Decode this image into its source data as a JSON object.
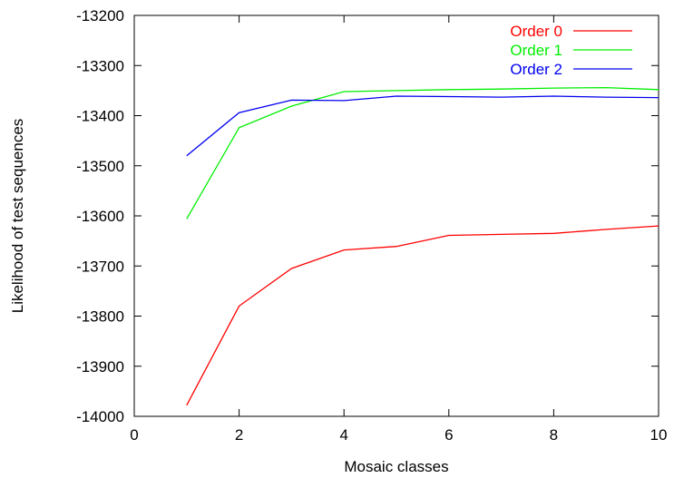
{
  "chart_data": {
    "type": "line",
    "xlabel": "Mosaic classes",
    "ylabel": "Likelihood of test sequences",
    "xlim": [
      0,
      10
    ],
    "ylim": [
      -14000,
      -13200
    ],
    "x_ticks": [
      0,
      2,
      4,
      6,
      8,
      10
    ],
    "y_ticks": [
      -14000,
      -13900,
      -13800,
      -13700,
      -13600,
      -13500,
      -13400,
      -13300,
      -13200
    ],
    "x_tick_labels": [
      "0",
      "2",
      "4",
      "6",
      "8",
      "10"
    ],
    "y_tick_labels": [
      "-14000",
      "-13900",
      "-13800",
      "-13700",
      "-13600",
      "-13500",
      "-13400",
      "-13300",
      "-13200"
    ],
    "grid": false,
    "legend_position": "top-right",
    "x": [
      1,
      2,
      3,
      4,
      5,
      6,
      7,
      8,
      9,
      10
    ],
    "series": [
      {
        "name": "Order 0",
        "color": "#ff0000",
        "values": [
          -13978,
          -13780,
          -13705,
          -13668,
          -13661,
          -13639,
          -13637,
          -13635,
          -13627,
          -13620
        ]
      },
      {
        "name": "Order 1",
        "color": "#00ee00",
        "values": [
          -13606,
          -13424,
          -13381,
          -13352,
          -13350,
          -13348,
          -13347,
          -13345,
          -13344,
          -13348
        ]
      },
      {
        "name": "Order 2",
        "color": "#0000ee",
        "values": [
          -13480,
          -13394,
          -13369,
          -13370,
          -13361,
          -13362,
          -13363,
          -13361,
          -13363,
          -13364
        ]
      }
    ]
  }
}
